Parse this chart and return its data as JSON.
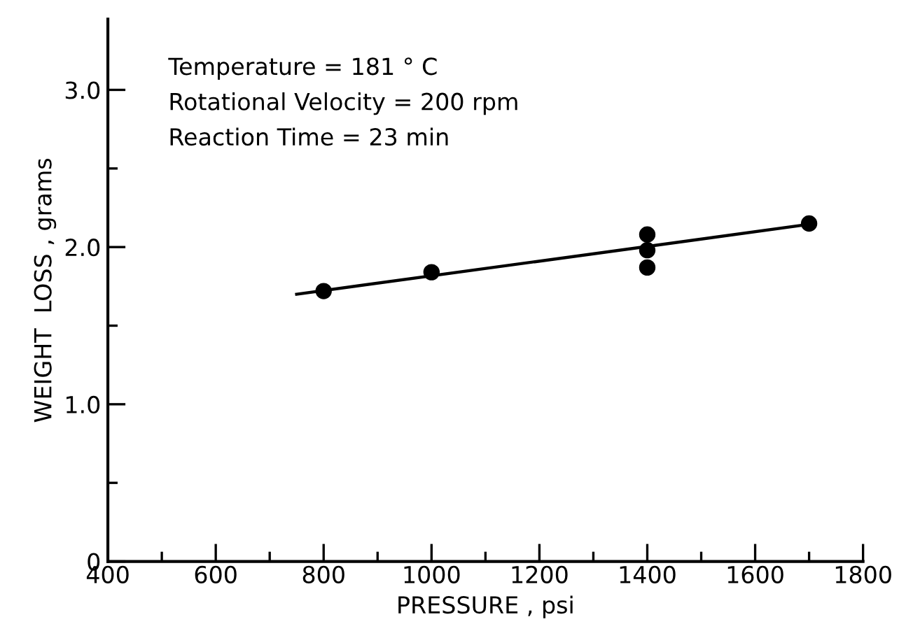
{
  "chart_data": {
    "type": "scatter",
    "xlabel": "PRESSURE , psi",
    "ylabel": "WEIGHT  LOSS , grams",
    "xlim": [
      400,
      1800
    ],
    "ylim": [
      0,
      3.45
    ],
    "xticks": [
      400,
      {
        "value": 500,
        "label": null
      },
      600,
      {
        "value": 700,
        "label": null
      },
      800,
      {
        "value": 900,
        "label": null
      },
      1000,
      {
        "value": 1100,
        "label": null
      },
      1200,
      {
        "value": 1300,
        "label": null
      },
      1400,
      {
        "value": 1500,
        "label": null
      },
      1600,
      {
        "value": 1700,
        "label": null
      },
      1800
    ],
    "yticks": [
      {
        "value": 0,
        "label": "0"
      },
      {
        "value": 0.5,
        "label": null
      },
      {
        "value": 1.0,
        "label": "1.0"
      },
      {
        "value": 1.5,
        "label": null
      },
      {
        "value": 2.0,
        "label": "2.0"
      },
      {
        "value": 2.5,
        "label": null
      },
      {
        "value": 3.0,
        "label": "3.0"
      }
    ],
    "marker": "circle",
    "grid": false,
    "legend": false,
    "series": [
      {
        "color": "#000000",
        "x": [
          800,
          1000,
          1400,
          1400,
          1400,
          1700
        ],
        "values": [
          1.72,
          1.84,
          2.08,
          1.98,
          1.87,
          2.15
        ]
      },
      {
        "type": "line",
        "color": "#000000",
        "x": [
          750,
          1690
        ],
        "values": [
          1.7,
          2.14
        ],
        "marker": "none",
        "line_style": "solid"
      }
    ],
    "annotations": [
      "Temperature = 181 ° C",
      "Rotational Velocity = 200 rpm",
      "Reaction Time = 23 min"
    ]
  }
}
